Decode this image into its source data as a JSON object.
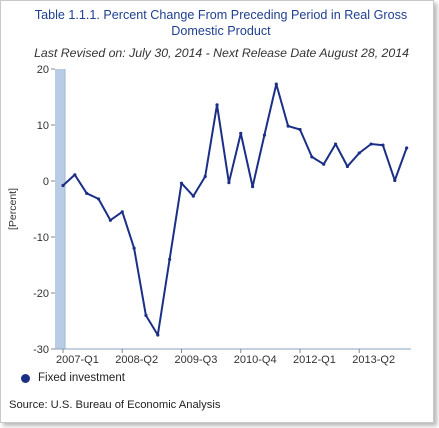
{
  "chart_data": {
    "type": "line",
    "title": "Table 1.1.1. Percent Change From Preceding Period in Real Gross Domestic Product",
    "subtitle": "Last Revised on: July 30, 2014 - Next Release Date August 28, 2014",
    "ylabel": "[Percent]",
    "xlabel": "",
    "ylim": [
      -30,
      20
    ],
    "yticks": [
      "20",
      "10",
      "0",
      "-10",
      "-20",
      "-30"
    ],
    "ytick_values": [
      20,
      10,
      0,
      -10,
      -20,
      -30
    ],
    "xticks": [
      "2007-Q1",
      "2008-Q2",
      "2009-Q3",
      "2010-Q4",
      "2012-Q1",
      "2013-Q2"
    ],
    "xtick_index": [
      0,
      5,
      10,
      15,
      20,
      25
    ],
    "grid": false,
    "legend_position": "bottom-left",
    "series": [
      {
        "name": "Fixed investment",
        "color": "#1c2f86",
        "values": [
          -0.8,
          1.1,
          -2.2,
          -3.2,
          -7.0,
          -5.5,
          -12.0,
          -24.0,
          -27.5,
          -14.0,
          -0.4,
          -2.7,
          0.8,
          13.6,
          -0.3,
          8.5,
          -1.0,
          8.2,
          17.3,
          9.8,
          9.2,
          4.3,
          3.0,
          6.6,
          2.6,
          5.0,
          6.6,
          6.4,
          0.1,
          5.9
        ]
      }
    ]
  },
  "source": "Source: U.S. Bureau of Economic Analysis"
}
